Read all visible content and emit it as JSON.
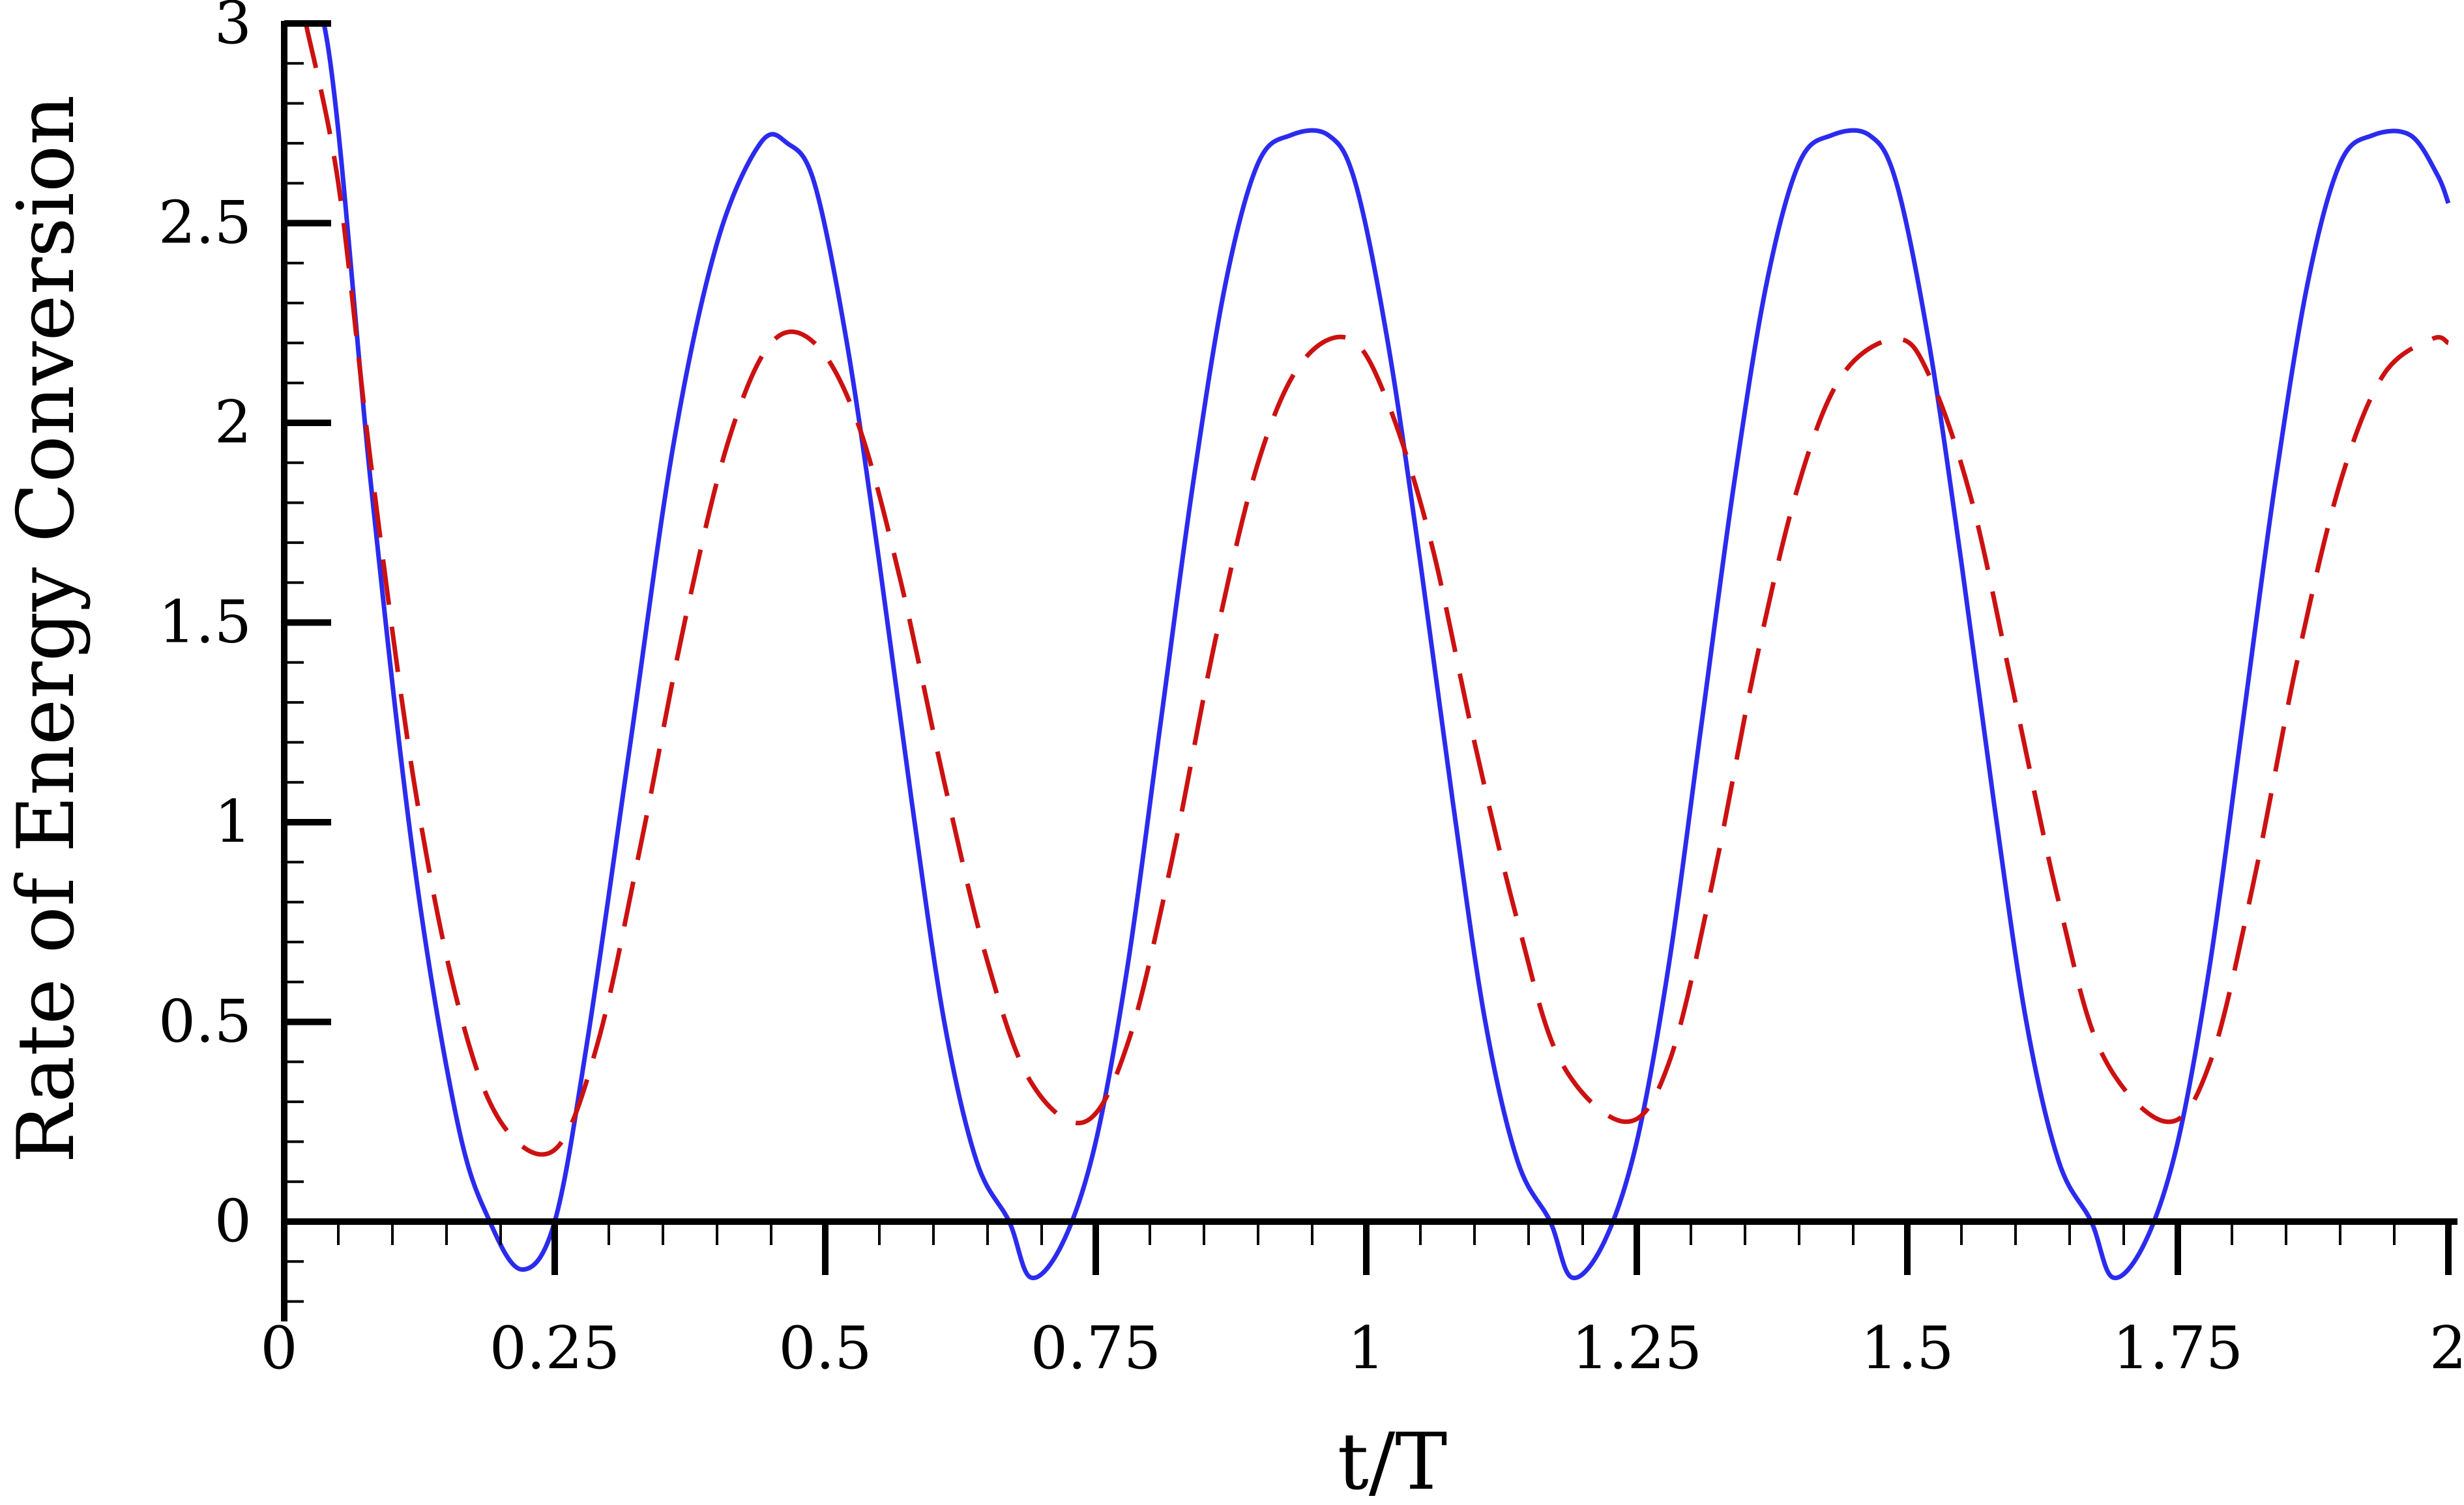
{
  "chart_data": {
    "type": "line",
    "title": "",
    "xlabel": "t/T",
    "ylabel": "Rate of Energy Conversion",
    "xlim": [
      0,
      2
    ],
    "ylim": [
      -0.25,
      3
    ],
    "x_ticks": [
      {
        "value": 0,
        "label": "0"
      },
      {
        "value": 0.25,
        "label": "0.25"
      },
      {
        "value": 0.5,
        "label": "0.5"
      },
      {
        "value": 0.75,
        "label": "0.75"
      },
      {
        "value": 1,
        "label": "1"
      },
      {
        "value": 1.25,
        "label": "1.25"
      },
      {
        "value": 1.5,
        "label": "1.5"
      },
      {
        "value": 1.75,
        "label": "1.75"
      },
      {
        "value": 2,
        "label": "2"
      }
    ],
    "y_ticks": [
      {
        "value": 0,
        "label": "0"
      },
      {
        "value": 0.5,
        "label": "0.5"
      },
      {
        "value": 1,
        "label": "1"
      },
      {
        "value": 1.5,
        "label": "1.5"
      },
      {
        "value": 2,
        "label": "2"
      },
      {
        "value": 2.5,
        "label": "2.5"
      },
      {
        "value": 3,
        "label": "3"
      }
    ],
    "grid": false,
    "legend": "none",
    "series": [
      {
        "color": "#2b2bee",
        "style": "solid",
        "x": [
          0.0,
          0.04,
          0.08,
          0.12,
          0.16,
          0.19,
          0.22,
          0.25,
          0.28,
          0.32,
          0.36,
          0.4,
          0.44,
          0.465,
          0.49,
          0.52,
          0.55,
          0.58,
          0.61,
          0.64,
          0.67,
          0.69,
          0.72,
          0.75,
          0.78,
          0.81,
          0.84,
          0.87,
          0.9,
          0.93,
          0.965,
          0.99,
          1.02,
          1.05,
          1.08,
          1.11,
          1.14,
          1.17,
          1.19,
          1.22,
          1.25,
          1.28,
          1.31,
          1.34,
          1.37,
          1.4,
          1.43,
          1.465,
          1.49,
          1.52,
          1.55,
          1.58,
          1.61,
          1.64,
          1.67,
          1.69,
          1.72,
          1.75,
          1.78,
          1.81,
          1.84,
          1.87,
          1.9,
          1.93,
          1.965,
          1.99,
          2.0
        ],
        "y": [
          3.2,
          2.95,
          1.85,
          0.9,
          0.25,
          0.0,
          -0.12,
          0.0,
          0.45,
          1.2,
          1.95,
          2.45,
          2.7,
          2.7,
          2.6,
          2.2,
          1.65,
          1.05,
          0.5,
          0.15,
          0.0,
          -0.14,
          -0.05,
          0.2,
          0.65,
          1.25,
          1.85,
          2.35,
          2.65,
          2.72,
          2.72,
          2.6,
          2.2,
          1.65,
          1.05,
          0.5,
          0.15,
          0.0,
          -0.14,
          -0.05,
          0.2,
          0.65,
          1.25,
          1.85,
          2.35,
          2.65,
          2.72,
          2.72,
          2.6,
          2.2,
          1.65,
          1.05,
          0.5,
          0.15,
          0.0,
          -0.14,
          -0.05,
          0.2,
          0.65,
          1.25,
          1.85,
          2.35,
          2.65,
          2.72,
          2.72,
          2.62,
          2.55
        ]
      },
      {
        "color": "#cc1111",
        "style": "dashed",
        "x": [
          0.02,
          0.05,
          0.08,
          0.12,
          0.16,
          0.2,
          0.25,
          0.29,
          0.33,
          0.37,
          0.41,
          0.45,
          0.49,
          0.53,
          0.57,
          0.61,
          0.65,
          0.69,
          0.74,
          0.78,
          0.82,
          0.86,
          0.9,
          0.94,
          0.985,
          1.02,
          1.06,
          1.1,
          1.14,
          1.18,
          1.24,
          1.28,
          1.32,
          1.36,
          1.4,
          1.44,
          1.49,
          1.52,
          1.56,
          1.6,
          1.64,
          1.68,
          1.74,
          1.78,
          1.82,
          1.86,
          1.9,
          1.94,
          1.985,
          2.0
        ],
        "y": [
          3.0,
          2.6,
          1.9,
          1.1,
          0.55,
          0.25,
          0.18,
          0.45,
          0.95,
          1.5,
          1.95,
          2.2,
          2.2,
          2.0,
          1.6,
          1.1,
          0.65,
          0.35,
          0.25,
          0.45,
          0.9,
          1.45,
          1.9,
          2.15,
          2.21,
          2.05,
          1.7,
          1.2,
          0.75,
          0.4,
          0.25,
          0.4,
          0.85,
          1.4,
          1.85,
          2.12,
          2.21,
          2.12,
          1.8,
          1.3,
          0.8,
          0.42,
          0.25,
          0.4,
          0.85,
          1.4,
          1.85,
          2.12,
          2.21,
          2.2
        ]
      }
    ]
  }
}
